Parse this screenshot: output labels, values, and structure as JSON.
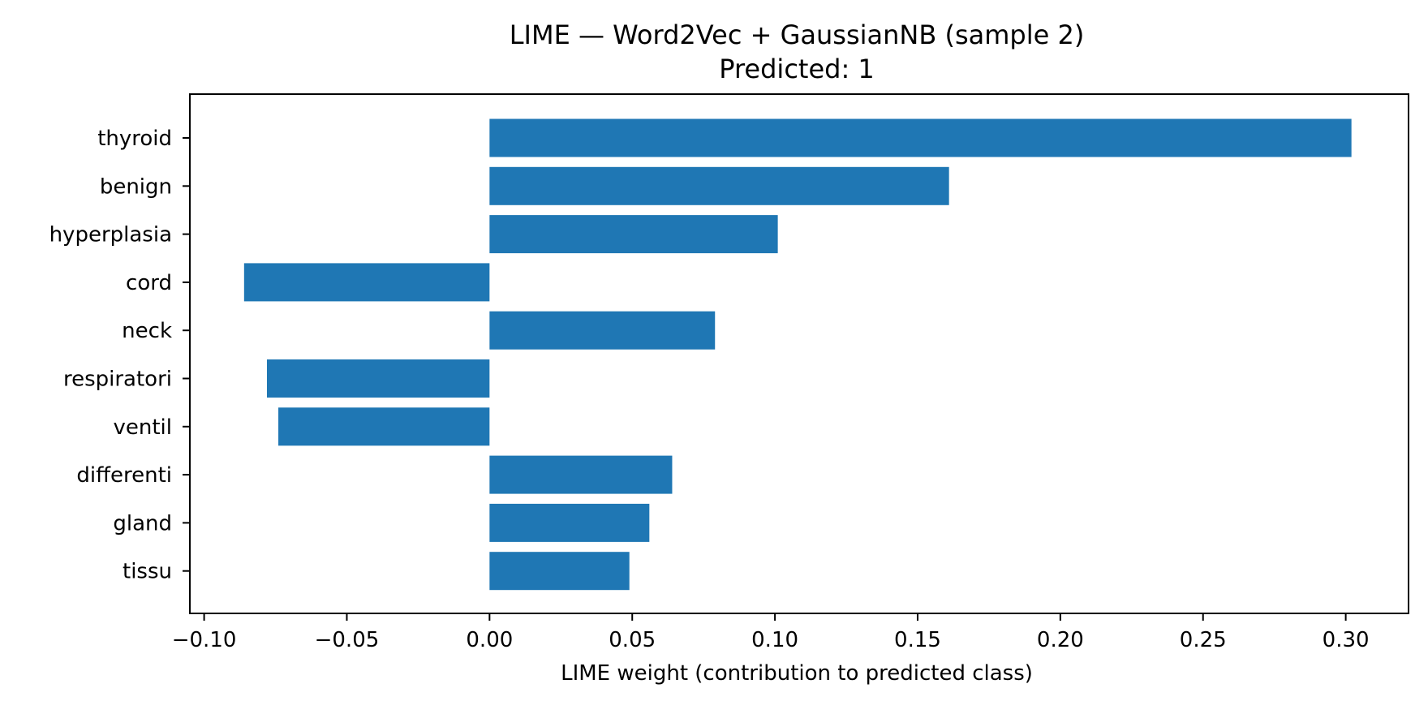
{
  "chart_data": {
    "type": "bar",
    "orientation": "horizontal",
    "title": "LIME — Word2Vec + GaussianNB (sample 2)",
    "subtitle": "Predicted: 1",
    "xlabel": "LIME weight (contribution to predicted class)",
    "ylabel": "",
    "xlim": [
      -0.105,
      0.322
    ],
    "xticks": [
      -0.1,
      -0.05,
      0.0,
      0.05,
      0.1,
      0.15,
      0.2,
      0.25,
      0.3
    ],
    "xtick_labels": [
      "−0.10",
      "−0.05",
      "0.00",
      "0.05",
      "0.10",
      "0.15",
      "0.20",
      "0.25",
      "0.30"
    ],
    "categories": [
      "thyroid",
      "benign",
      "hyperplasia",
      "cord",
      "neck",
      "respiratori",
      "ventil",
      "differenti",
      "gland",
      "tissu"
    ],
    "values": [
      0.302,
      0.161,
      0.101,
      -0.086,
      0.079,
      -0.078,
      -0.074,
      0.064,
      0.056,
      0.049
    ],
    "bar_color": "#1f77b4",
    "grid": false,
    "legend": "none"
  }
}
